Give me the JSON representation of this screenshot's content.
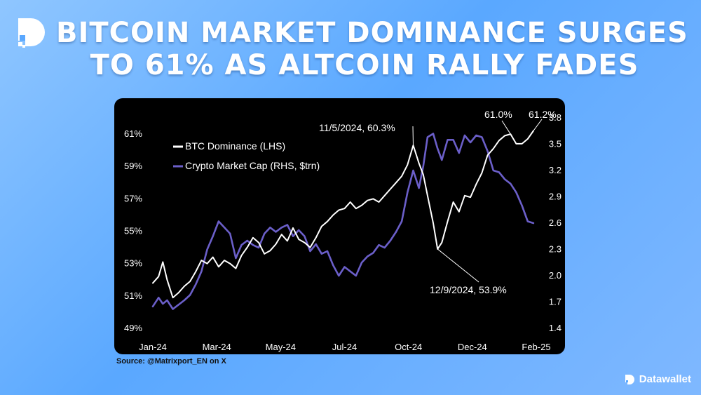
{
  "header": {
    "title_line1": "BITCOIN MARKET DOMINANCE SURGES",
    "title_line2": "TO 61% AS ALTCOIN RALLY FADES"
  },
  "footer": {
    "source": "Source: @Matrixport_EN on X",
    "brand": "Datawallet"
  },
  "colors": {
    "btc_line": "#ffffff",
    "mcap_line": "#6b5fc9",
    "background": "#5aa8ff"
  },
  "chart_data": {
    "type": "line",
    "title": "",
    "legend_position": "top-left",
    "grid": false,
    "x_ticks": [
      "Jan-24",
      "Mar-24",
      "May-24",
      "Jul-24",
      "Oct-24",
      "Dec-24",
      "Feb-25"
    ],
    "x_range": [
      0,
      13.4
    ],
    "left_axis": {
      "range": [
        49,
        62
      ],
      "ticks": [
        49,
        51,
        53,
        55,
        57,
        59,
        61
      ],
      "tick_labels": [
        "49%",
        "51%",
        "53%",
        "55%",
        "57%",
        "59%",
        "61%"
      ]
    },
    "right_axis": {
      "range": [
        1.4,
        3.8
      ],
      "ticks": [
        1.4,
        1.7,
        2.0,
        2.3,
        2.6,
        2.9,
        3.2,
        3.5,
        3.8
      ],
      "tick_labels": [
        "1.4",
        "1.7",
        "2.0",
        "2.3",
        "2.6",
        "2.9",
        "3.2",
        "3.5",
        "3.8"
      ]
    },
    "series": [
      {
        "name": "BTC Dominance (LHS)",
        "axis": "left",
        "x": [
          0,
          0.2,
          0.35,
          0.5,
          0.7,
          0.9,
          1.1,
          1.3,
          1.5,
          1.7,
          1.9,
          2.1,
          2.3,
          2.5,
          2.7,
          2.9,
          3.1,
          3.3,
          3.5,
          3.7,
          3.9,
          4.1,
          4.3,
          4.5,
          4.7,
          4.9,
          5.1,
          5.3,
          5.5,
          5.7,
          5.9,
          6.1,
          6.3,
          6.5,
          6.7,
          6.9,
          7.1,
          7.3,
          7.5,
          7.7,
          7.9,
          8.1,
          8.3,
          8.5,
          8.7,
          8.9,
          9.1,
          9.3,
          9.45,
          9.6,
          9.8,
          9.95,
          10.1,
          10.3,
          10.5,
          10.7,
          10.9,
          11.1,
          11.3,
          11.5,
          11.7,
          11.9,
          12.1,
          12.3,
          12.5,
          12.7,
          12.9,
          13.1,
          13.3
        ],
        "values": [
          51.8,
          52.2,
          53.1,
          52.0,
          50.9,
          51.2,
          51.6,
          51.9,
          52.5,
          53.2,
          53.0,
          53.4,
          52.8,
          53.2,
          53.0,
          52.7,
          53.5,
          54.0,
          54.6,
          54.3,
          53.6,
          53.8,
          54.2,
          54.8,
          54.4,
          55.2,
          54.5,
          54.3,
          54.0,
          54.6,
          55.3,
          55.6,
          56.0,
          56.3,
          56.4,
          56.8,
          56.4,
          56.6,
          56.9,
          57.0,
          56.8,
          57.2,
          57.6,
          58.0,
          58.4,
          59.1,
          60.3,
          59.2,
          58.5,
          57.2,
          55.5,
          53.9,
          54.3,
          55.6,
          56.8,
          56.2,
          57.2,
          57.1,
          57.9,
          58.6,
          59.7,
          60.1,
          60.6,
          60.9,
          61.0,
          60.4,
          60.4,
          60.7,
          61.2
        ]
      },
      {
        "name": "Crypto Market Cap (RHS, $trn)",
        "axis": "right",
        "x": [
          0,
          0.2,
          0.35,
          0.5,
          0.7,
          0.9,
          1.1,
          1.3,
          1.5,
          1.7,
          1.9,
          2.1,
          2.3,
          2.5,
          2.7,
          2.9,
          3.1,
          3.3,
          3.5,
          3.7,
          3.9,
          4.1,
          4.3,
          4.5,
          4.7,
          4.9,
          5.1,
          5.3,
          5.5,
          5.7,
          5.9,
          6.1,
          6.3,
          6.5,
          6.7,
          6.9,
          7.1,
          7.3,
          7.5,
          7.7,
          7.9,
          8.1,
          8.3,
          8.5,
          8.7,
          8.9,
          9.1,
          9.3,
          9.45,
          9.6,
          9.8,
          9.95,
          10.1,
          10.3,
          10.5,
          10.7,
          10.9,
          11.1,
          11.3,
          11.5,
          11.7,
          11.9,
          12.1,
          12.3,
          12.5,
          12.7,
          12.9,
          13.1,
          13.3
        ],
        "values": [
          1.65,
          1.75,
          1.68,
          1.72,
          1.62,
          1.67,
          1.72,
          1.78,
          1.9,
          2.05,
          2.3,
          2.45,
          2.62,
          2.55,
          2.48,
          2.2,
          2.35,
          2.4,
          2.35,
          2.32,
          2.48,
          2.55,
          2.5,
          2.55,
          2.58,
          2.45,
          2.52,
          2.45,
          2.28,
          2.36,
          2.25,
          2.28,
          2.12,
          2.0,
          2.1,
          2.05,
          2.0,
          2.15,
          2.22,
          2.26,
          2.35,
          2.32,
          2.4,
          2.5,
          2.62,
          2.95,
          3.2,
          3.0,
          3.25,
          3.58,
          3.62,
          3.45,
          3.32,
          3.55,
          3.55,
          3.4,
          3.6,
          3.52,
          3.6,
          3.58,
          3.42,
          3.2,
          3.18,
          3.1,
          3.05,
          2.95,
          2.8,
          2.62,
          2.6
        ]
      }
    ],
    "annotations": [
      {
        "text": "11/5/2024, 60.3%"
      },
      {
        "text": "12/9/2024, 53.9%"
      },
      {
        "text": "61.0%"
      },
      {
        "text": "61.2%"
      }
    ]
  }
}
